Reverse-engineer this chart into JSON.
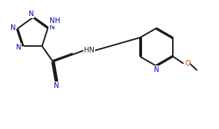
{
  "bg_color": "#ffffff",
  "bond_color": "#1a1a1a",
  "lw": 1.5,
  "fs": 7.2,
  "atom_color": "#1a1a1a",
  "N_color": "#0000bb",
  "O_color": "#cc3300",
  "dbo": 0.032,
  "xlim": [
    0.0,
    6.5
  ],
  "ylim": [
    -1.6,
    2.3
  ]
}
